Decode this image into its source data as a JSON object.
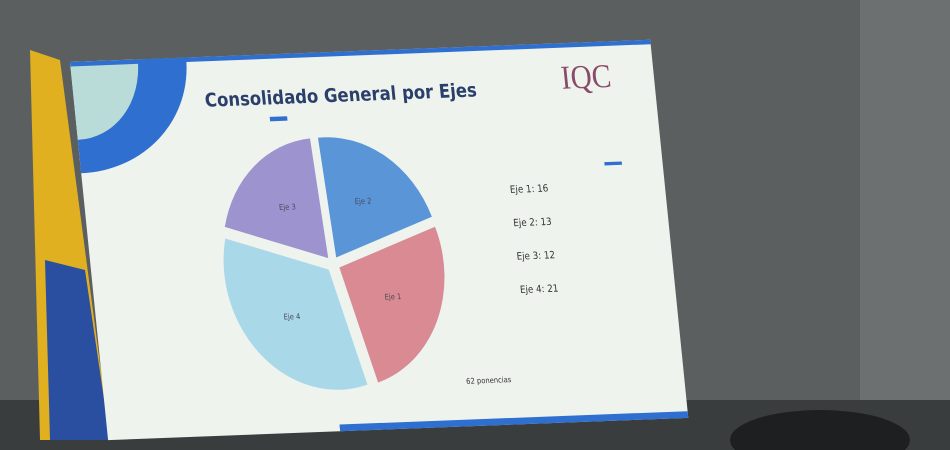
{
  "logo": "IQC",
  "chart_data": {
    "type": "pie",
    "title": "Consolidado General por Ejes",
    "categories": [
      "Eje 1",
      "Eje 2",
      "Eje 3",
      "Eje 4"
    ],
    "values": [
      16,
      13,
      12,
      21
    ],
    "value_labels": [
      "Eje 1: 16",
      "Eje 2: 13",
      "Eje 3: 12",
      "Eje 4: 21"
    ],
    "colors": [
      "#d98a93",
      "#5a95d8",
      "#9d93cf",
      "#a9d8e8"
    ],
    "note": "62 ponencias"
  }
}
